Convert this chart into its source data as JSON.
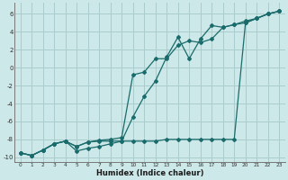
{
  "xlabel": "Humidex (Indice chaleur)",
  "background_color": "#cce8e8",
  "grid_color": "#aacccc",
  "line_color": "#1a6b6b",
  "xlim": [
    -0.5,
    23.5
  ],
  "ylim": [
    -10.5,
    7.2
  ],
  "xticks": [
    0,
    1,
    2,
    3,
    4,
    5,
    6,
    7,
    8,
    9,
    10,
    11,
    12,
    13,
    14,
    15,
    16,
    17,
    18,
    19,
    20,
    21,
    22,
    23
  ],
  "yticks": [
    -10,
    -8,
    -6,
    -4,
    -2,
    0,
    2,
    4,
    6
  ],
  "series1_x": [
    0,
    1,
    2,
    3,
    4,
    5,
    6,
    7,
    8,
    9,
    10,
    11,
    12,
    13,
    14,
    15,
    16,
    17,
    18,
    19,
    20,
    21,
    22,
    23
  ],
  "series1_y": [
    -9.5,
    -9.8,
    -9.2,
    -8.5,
    -8.2,
    -8.8,
    -8.3,
    -8.2,
    -8.2,
    -8.2,
    -8.2,
    -8.2,
    -8.2,
    -8.0,
    -8.0,
    -8.0,
    -8.0,
    -8.0,
    -8.0,
    -8.0,
    5.0,
    5.5,
    6.0,
    6.3
  ],
  "series2_x": [
    0,
    1,
    2,
    3,
    4,
    5,
    6,
    7,
    8,
    9,
    10,
    11,
    12,
    13,
    14,
    15,
    16,
    17,
    18,
    19,
    20,
    21,
    22,
    23
  ],
  "series2_y": [
    -9.5,
    -9.8,
    -9.2,
    -8.5,
    -8.2,
    -9.3,
    -9.0,
    -8.8,
    -8.5,
    -8.2,
    -5.5,
    -3.2,
    -1.5,
    1.2,
    3.4,
    1.0,
    3.2,
    4.7,
    4.5,
    4.8,
    5.2,
    5.5,
    6.0,
    6.3
  ],
  "series3_x": [
    0,
    1,
    2,
    3,
    4,
    5,
    6,
    7,
    8,
    9,
    10,
    11,
    12,
    13,
    14,
    15,
    16,
    17,
    18,
    19,
    20,
    21,
    22,
    23
  ],
  "series3_y": [
    -9.5,
    -9.8,
    -9.2,
    -8.5,
    -8.2,
    -8.8,
    -8.3,
    -8.1,
    -8.0,
    -7.8,
    -0.8,
    -0.5,
    1.0,
    1.0,
    2.5,
    3.0,
    2.8,
    3.2,
    4.5,
    4.8,
    5.0,
    5.5,
    6.0,
    6.3
  ]
}
